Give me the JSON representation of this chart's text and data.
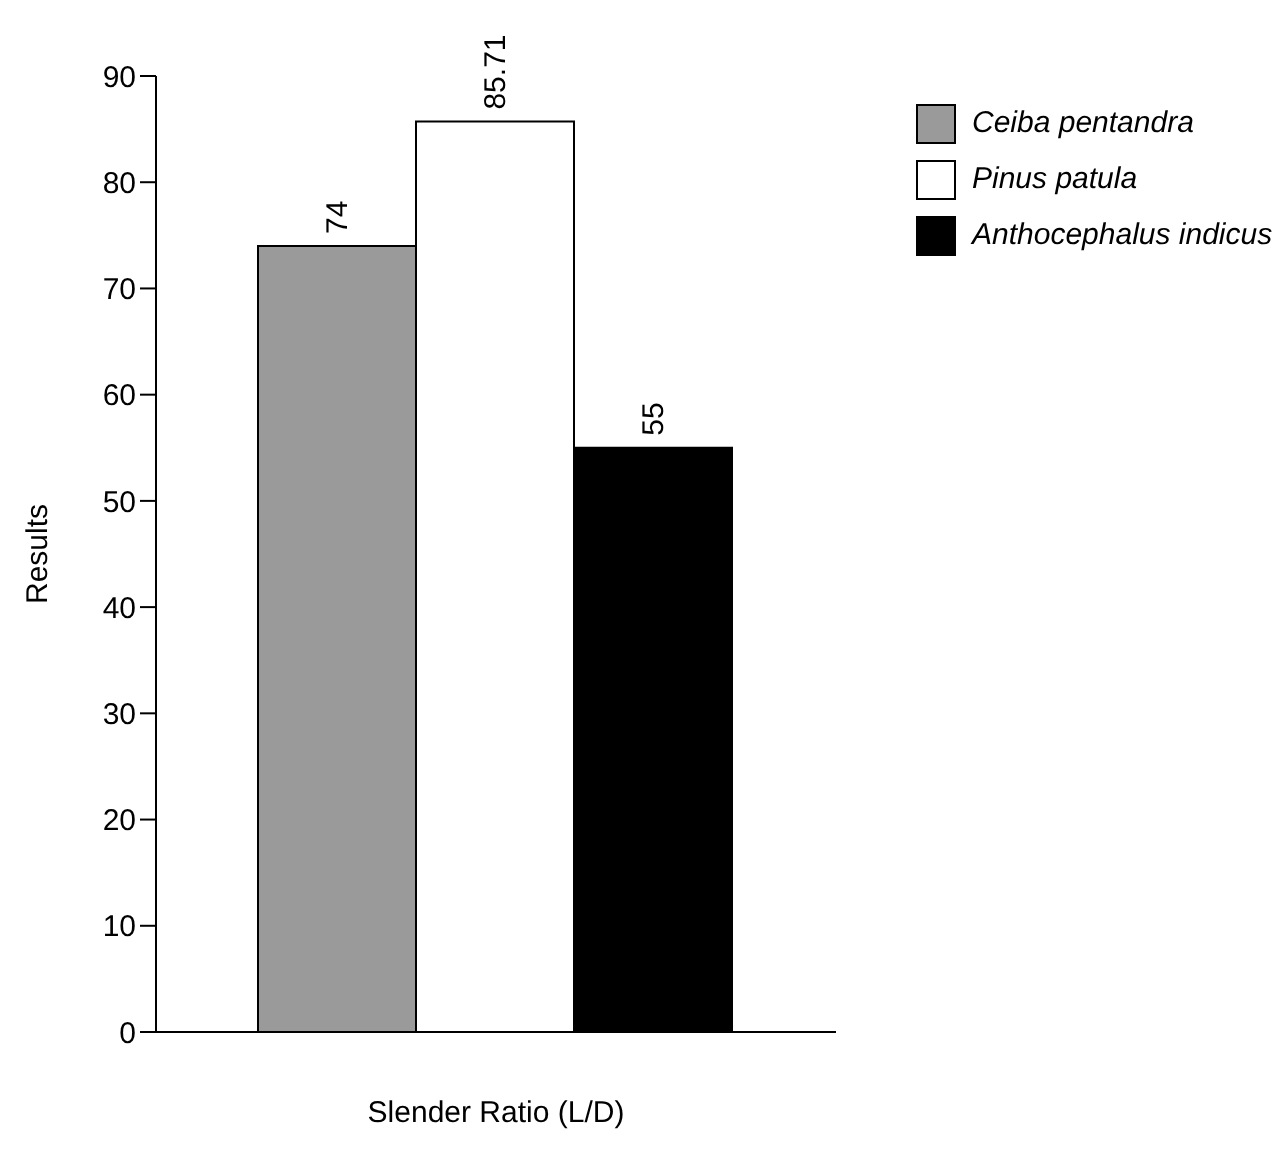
{
  "chart_data": {
    "type": "bar",
    "xlabel": "Slender Ratio (L/D)",
    "ylabel": "Results",
    "categories": [
      null
    ],
    "series": [
      {
        "name": "Ceiba pentandra",
        "color": "#9a9a9a",
        "values": [
          74
        ]
      },
      {
        "name": "Pinus patula",
        "color": "#ffffff",
        "values": [
          85.71
        ]
      },
      {
        "name": "Anthocephalus indicus",
        "color": "#000000",
        "values": [
          55
        ]
      }
    ],
    "ylim": [
      0,
      90
    ],
    "yticks": [
      0,
      10,
      20,
      30,
      40,
      50,
      60,
      70,
      80,
      90
    ],
    "data_labels": true,
    "legend": "top right",
    "grid": false
  }
}
